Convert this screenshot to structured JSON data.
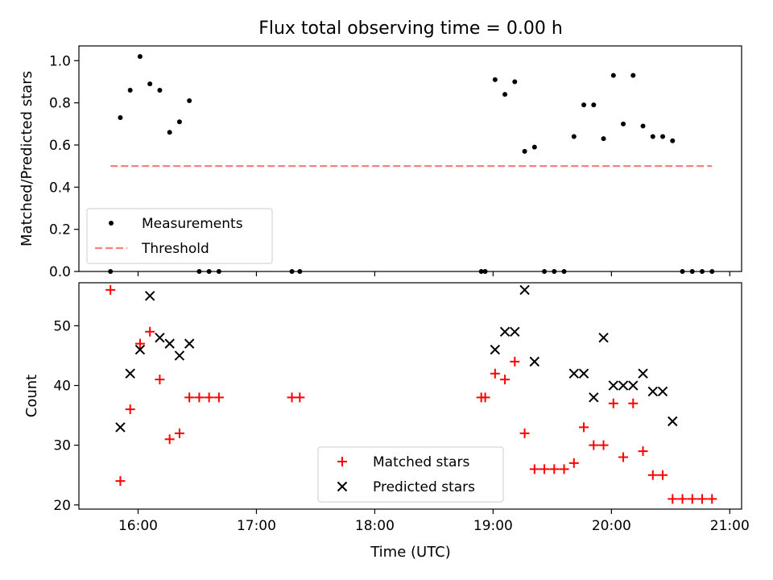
{
  "figure": {
    "title": "Flux total observing time = 0.00 h",
    "xlabel": "Time (UTC)",
    "xticks": [
      "16:00",
      "17:00",
      "18:00",
      "19:00",
      "20:00",
      "21:00"
    ]
  },
  "colors": {
    "measurements": "#000000",
    "threshold": "#ff7f7f",
    "matched": "#ff0000",
    "predicted": "#000000"
  },
  "chart_data": [
    {
      "type": "scatter",
      "ylabel": "Matched/Predicted stars",
      "xlim": [
        "15:30",
        "21:06"
      ],
      "ylim": [
        0,
        1.07
      ],
      "yticks": [
        "0.0",
        "0.2",
        "0.4",
        "0.6",
        "0.8",
        "1.0"
      ],
      "legend": {
        "placement": "lower-left",
        "entries": [
          "Measurements",
          "Threshold"
        ]
      },
      "threshold": {
        "name": "Threshold",
        "value": 0.5,
        "x_range": [
          "15:46",
          "20:51"
        ]
      },
      "series": [
        {
          "name": "Measurements",
          "points": [
            [
              "15:46",
              0.0
            ],
            [
              "15:51",
              0.73
            ],
            [
              "15:56",
              0.86
            ],
            [
              "16:01",
              1.02
            ],
            [
              "16:06",
              0.89
            ],
            [
              "16:11",
              0.86
            ],
            [
              "16:16",
              0.66
            ],
            [
              "16:21",
              0.71
            ],
            [
              "16:26",
              0.81
            ],
            [
              "16:31",
              0.0
            ],
            [
              "16:36",
              0.0
            ],
            [
              "16:41",
              0.0
            ],
            [
              "17:18",
              0.0
            ],
            [
              "17:22",
              0.0
            ],
            [
              "18:54",
              0.0
            ],
            [
              "18:56",
              0.0
            ],
            [
              "19:01",
              0.91
            ],
            [
              "19:06",
              0.84
            ],
            [
              "19:11",
              0.9
            ],
            [
              "19:16",
              0.57
            ],
            [
              "19:21",
              0.59
            ],
            [
              "19:26",
              0.0
            ],
            [
              "19:31",
              0.0
            ],
            [
              "19:36",
              0.0
            ],
            [
              "19:41",
              0.64
            ],
            [
              "19:46",
              0.79
            ],
            [
              "19:51",
              0.79
            ],
            [
              "19:56",
              0.63
            ],
            [
              "20:01",
              0.93
            ],
            [
              "20:06",
              0.7
            ],
            [
              "20:11",
              0.93
            ],
            [
              "20:16",
              0.69
            ],
            [
              "20:21",
              0.64
            ],
            [
              "20:26",
              0.64
            ],
            [
              "20:31",
              0.62
            ],
            [
              "20:36",
              0.0
            ],
            [
              "20:41",
              0.0
            ],
            [
              "20:46",
              0.0
            ],
            [
              "20:51",
              0.0
            ]
          ]
        }
      ]
    },
    {
      "type": "scatter",
      "ylabel": "Count",
      "xlabel": "Time (UTC)",
      "xlim": [
        "15:30",
        "21:06"
      ],
      "ylim": [
        19.3,
        57.2
      ],
      "yticks": [
        "20",
        "30",
        "40",
        "50"
      ],
      "legend": {
        "placement": "lower-center",
        "entries": [
          "Matched stars",
          "Predicted stars"
        ]
      },
      "series": [
        {
          "name": "Matched stars",
          "marker": "plus",
          "points": [
            [
              "15:46",
              56
            ],
            [
              "15:51",
              24
            ],
            [
              "15:56",
              36
            ],
            [
              "16:01",
              47
            ],
            [
              "16:06",
              49
            ],
            [
              "16:11",
              41
            ],
            [
              "16:16",
              31
            ],
            [
              "16:21",
              32
            ],
            [
              "16:26",
              38
            ],
            [
              "16:31",
              38
            ],
            [
              "16:36",
              38
            ],
            [
              "16:41",
              38
            ],
            [
              "17:18",
              38
            ],
            [
              "17:22",
              38
            ],
            [
              "18:54",
              38
            ],
            [
              "18:56",
              38
            ],
            [
              "19:01",
              42
            ],
            [
              "19:06",
              41
            ],
            [
              "19:11",
              44
            ],
            [
              "19:16",
              32
            ],
            [
              "19:21",
              26
            ],
            [
              "19:26",
              26
            ],
            [
              "19:31",
              26
            ],
            [
              "19:36",
              26
            ],
            [
              "19:41",
              27
            ],
            [
              "19:46",
              33
            ],
            [
              "19:51",
              30
            ],
            [
              "19:56",
              30
            ],
            [
              "20:01",
              37
            ],
            [
              "20:06",
              28
            ],
            [
              "20:11",
              37
            ],
            [
              "20:16",
              29
            ],
            [
              "20:21",
              25
            ],
            [
              "20:26",
              25
            ],
            [
              "20:31",
              21
            ],
            [
              "20:36",
              21
            ],
            [
              "20:41",
              21
            ],
            [
              "20:46",
              21
            ],
            [
              "20:51",
              21
            ]
          ]
        },
        {
          "name": "Predicted stars",
          "marker": "x",
          "points": [
            [
              "15:51",
              33
            ],
            [
              "15:56",
              42
            ],
            [
              "16:01",
              46
            ],
            [
              "16:06",
              55
            ],
            [
              "16:11",
              48
            ],
            [
              "16:16",
              47
            ],
            [
              "16:21",
              45
            ],
            [
              "16:26",
              47
            ],
            [
              "19:01",
              46
            ],
            [
              "19:06",
              49
            ],
            [
              "19:11",
              49
            ],
            [
              "19:16",
              56
            ],
            [
              "19:21",
              44
            ],
            [
              "19:41",
              42
            ],
            [
              "19:46",
              42
            ],
            [
              "19:51",
              38
            ],
            [
              "19:56",
              48
            ],
            [
              "20:01",
              40
            ],
            [
              "20:06",
              40
            ],
            [
              "20:11",
              40
            ],
            [
              "20:16",
              42
            ],
            [
              "20:21",
              39
            ],
            [
              "20:26",
              39
            ],
            [
              "20:31",
              34
            ]
          ]
        }
      ]
    }
  ]
}
